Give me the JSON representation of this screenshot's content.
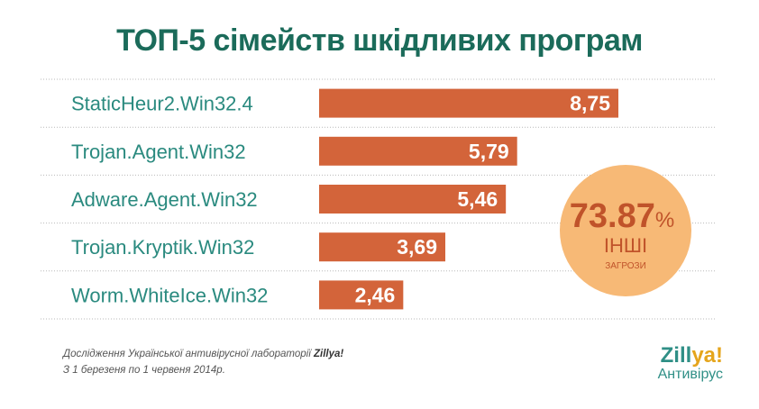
{
  "title": "ТОП-5 сімейств шкідливих програм",
  "chart_data": {
    "type": "bar",
    "orientation": "horizontal",
    "categories": [
      "StaticHeur2.Win32.4",
      "Trojan.Agent.Win32",
      "Adware.Agent.Win32",
      "Trojan.Kryptik.Win32",
      "Worm.WhiteIce.Win32"
    ],
    "values": [
      8.75,
      5.79,
      5.46,
      3.69,
      2.46
    ],
    "value_labels": [
      "8,75",
      "5,79",
      "5,46",
      "3,69",
      "2,46"
    ],
    "xlim": [
      0,
      8.75
    ],
    "bar_color": "#d3643a",
    "label_color": "#2a8a7f",
    "grid": true
  },
  "badge": {
    "value": "73.87",
    "unit": "%",
    "line1": "ІНШІ",
    "line2": "ЗАГРОЗИ",
    "fill": "#f7b976",
    "text_color": "#c0532a"
  },
  "footer": {
    "line1_prefix": "Дослідження Української антивірусної лабораторії ",
    "line1_brand": "Zillya!",
    "line2": "З 1 березеня по 1 червеня 2014р."
  },
  "logo": {
    "word_main": "Zill",
    "word_accent": "ya!",
    "subtitle": "Антивірус"
  }
}
